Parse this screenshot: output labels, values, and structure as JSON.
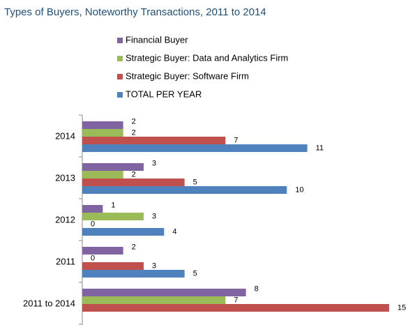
{
  "chart_data": {
    "type": "hbar",
    "title": "Types of Buyers, Noteworthy Transactions, 2011 to 2014",
    "categories": [
      "2014",
      "2013",
      "2012",
      "2011",
      "2011 to 2014"
    ],
    "series": [
      {
        "name": "Financial Buyer",
        "color": "#8064a2",
        "values": [
          2,
          3,
          1,
          2,
          8
        ]
      },
      {
        "name": "Strategic Buyer: Data and Analytics Firm",
        "color": "#9bbb59",
        "values": [
          2,
          2,
          3,
          0,
          7
        ]
      },
      {
        "name": "Strategic Buyer: Software Firm",
        "color": "#c0504d",
        "values": [
          7,
          5,
          0,
          3,
          15
        ]
      },
      {
        "name": "TOTAL PER YEAR",
        "color": "#4f81bd",
        "values": [
          11,
          10,
          4,
          5,
          null
        ]
      }
    ],
    "xlim": [
      0,
      15
    ]
  }
}
